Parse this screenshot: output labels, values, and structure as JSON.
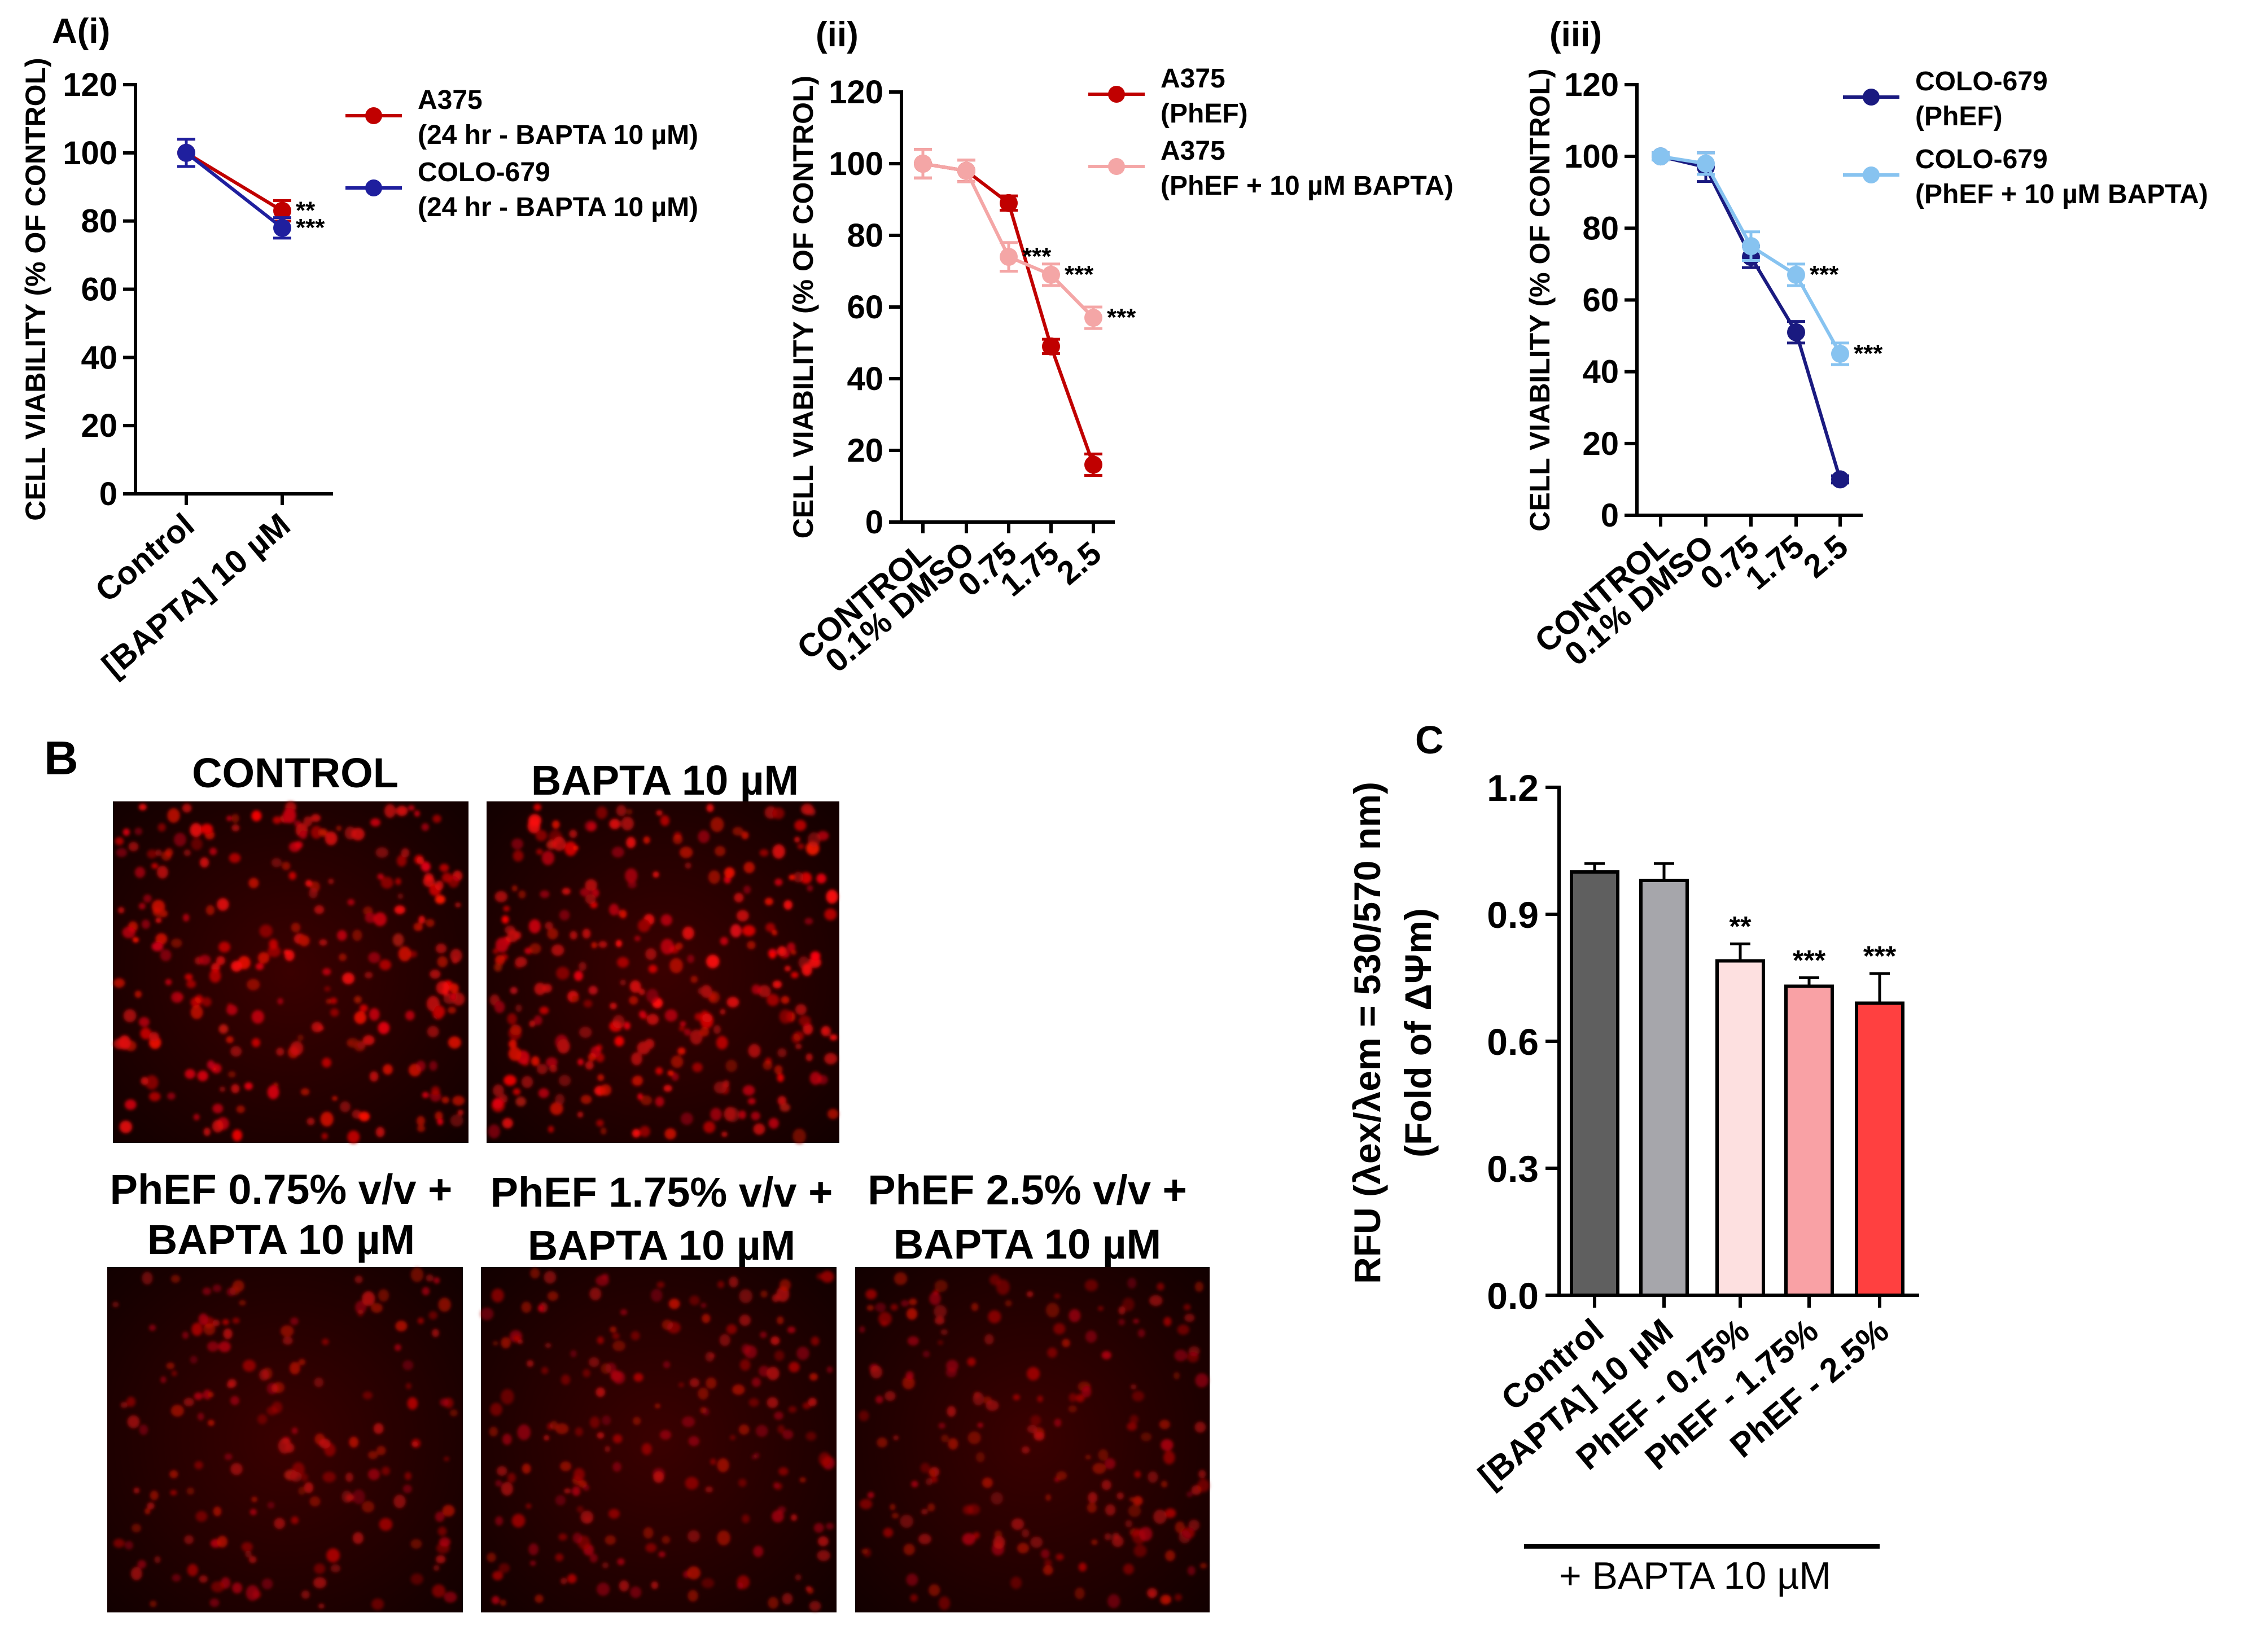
{
  "chart_data": [
    {
      "id": "Ai",
      "type": "line",
      "panel_label": "A(i)",
      "ylabel": "CELL VIABILITY (% OF CONTROL)",
      "ylim": [
        0,
        120
      ],
      "yticks": [
        0,
        20,
        40,
        60,
        80,
        100,
        120
      ],
      "categories": [
        "Control",
        "[BAPTA] 10 µM"
      ],
      "series": [
        {
          "name": "A375",
          "name_line2": "(24 hr - BAPTA 10 µM)",
          "color": "#c00000",
          "values": [
            100,
            83
          ],
          "errors": [
            4,
            3
          ],
          "sig": [
            "",
            "**"
          ]
        },
        {
          "name": "COLO-679",
          "name_line2": "(24 hr - BAPTA 10 µM)",
          "color": "#1f1f9e",
          "values": [
            100,
            78
          ],
          "errors": [
            4,
            3
          ],
          "sig": [
            "",
            "***"
          ]
        }
      ]
    },
    {
      "id": "Aii",
      "type": "line",
      "panel_label": "(ii)",
      "ylabel": "CELL VIABILITY (% OF CONTROL)",
      "ylim": [
        0,
        120
      ],
      "yticks": [
        0,
        20,
        40,
        60,
        80,
        100,
        120
      ],
      "categories": [
        "CONTROL",
        "0.1% DMSO",
        "0.75",
        "1.75",
        "2.5"
      ],
      "series": [
        {
          "name": "A375",
          "name_line2": "(PhEF)",
          "color": "#c00000",
          "values": [
            100,
            98,
            89,
            49,
            16
          ],
          "errors": [
            4,
            3,
            2,
            2,
            3
          ],
          "sig": [
            "",
            "",
            "",
            "",
            ""
          ]
        },
        {
          "name": "A375",
          "name_line2": "(PhEF + 10 µM BAPTA)",
          "color": "#f4a6a6",
          "values": [
            100,
            98,
            74,
            69,
            57
          ],
          "errors": [
            4,
            3,
            4,
            3,
            3
          ],
          "sig": [
            "",
            "",
            "***",
            "***",
            "***"
          ]
        }
      ]
    },
    {
      "id": "Aiii",
      "type": "line",
      "panel_label": "(iii)",
      "ylabel": "CELL VIABILITY (% OF CONTROL)",
      "ylim": [
        0,
        120
      ],
      "yticks": [
        0,
        20,
        40,
        60,
        80,
        100,
        120
      ],
      "categories": [
        "CONTROL",
        "0.1% DMSO",
        "0.75",
        "1.75",
        "2.5"
      ],
      "series": [
        {
          "name": "COLO-679",
          "name_line2": "(PhEF)",
          "color": "#1a1a80",
          "values": [
            100,
            97,
            72,
            51,
            10
          ],
          "errors": [
            1,
            4,
            3,
            3,
            1
          ],
          "sig": [
            "",
            "",
            "",
            "",
            ""
          ]
        },
        {
          "name": "COLO-679",
          "name_line2": "(PhEF + 10 µM BAPTA)",
          "color": "#87c3f0",
          "values": [
            100,
            98,
            75,
            67,
            45
          ],
          "errors": [
            1,
            3,
            4,
            3,
            3
          ],
          "sig": [
            "",
            "",
            "",
            "***",
            "***"
          ]
        }
      ]
    },
    {
      "id": "C",
      "type": "bar",
      "panel_label": "C",
      "ylabel_line1": "RFU  (λex/λem = 530/570 nm)",
      "ylabel_line2": "(Fold of ΔΨm)",
      "ylim": [
        0,
        1.2
      ],
      "yticks": [
        "0.0",
        "0.3",
        "0.6",
        "0.9",
        "1.2"
      ],
      "categories": [
        "Control",
        "[BAPTA] 10 µM",
        "PhEF - 0.75%",
        "PhEF - 1.75%",
        "PhEF - 2.5%"
      ],
      "values": [
        1.0,
        0.98,
        0.79,
        0.73,
        0.69
      ],
      "errors": [
        0.02,
        0.04,
        0.04,
        0.02,
        0.07
      ],
      "colors": [
        "#5f5f5f",
        "#a6a6ab",
        "#fde0e0",
        "#f9a1a5",
        "#ff4040"
      ],
      "sig": [
        "",
        "",
        "**",
        "***",
        "***"
      ],
      "group_label": "+ BAPTA 10 µM"
    }
  ],
  "panelB": {
    "label": "B",
    "titles": [
      {
        "line1": "CONTROL",
        "line2": ""
      },
      {
        "line1": "BAPTA 10 µM",
        "line2": ""
      },
      {
        "line1": "PhEF 0.75% v/v +",
        "line2": "BAPTA 10 µM"
      },
      {
        "line1": "PhEF 1.75% v/v +",
        "line2": "BAPTA 10 µM"
      },
      {
        "line1": "PhEF 2.5% v/v +",
        "line2": "BAPTA 10 µM"
      }
    ]
  }
}
